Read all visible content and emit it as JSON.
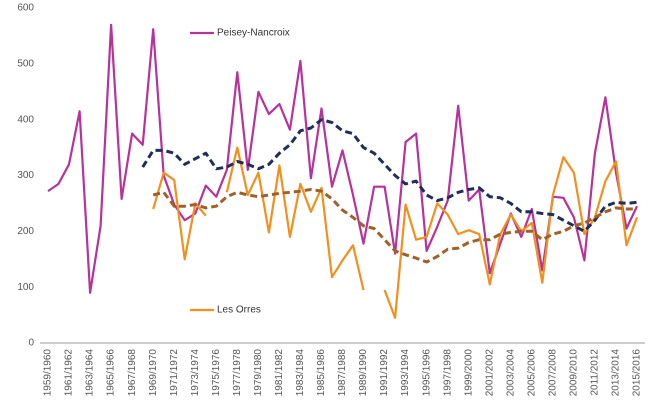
{
  "chart_data": {
    "type": "line",
    "categories": [
      "1959/1960",
      null,
      "1961/1962",
      null,
      "1963/1964",
      null,
      "1965/1966",
      null,
      "1967/1968",
      null,
      "1969/1970",
      null,
      "1971/1972",
      null,
      "1973/1974",
      null,
      "1975/1976",
      null,
      "1977/1978",
      null,
      "1979/1980",
      null,
      "1981/1982",
      null,
      "1983/1984",
      null,
      "1985/1986",
      null,
      "1987/1988",
      null,
      "1989/1990",
      null,
      "1991/1992",
      null,
      "1993/1994",
      null,
      "1995/1996",
      null,
      "1997/1998",
      null,
      "1999/2000",
      null,
      "2001/2002",
      null,
      "2003/2004",
      null,
      "2005/2006",
      null,
      "2007/2008",
      null,
      "2009/2010",
      null,
      "2011/2012",
      null,
      "2013/2014",
      null,
      "2015/2016"
    ],
    "series": [
      {
        "name": "Peisey-Nancroix",
        "color": "#b5339a",
        "values": [
          272,
          285,
          320,
          415,
          90,
          210,
          570,
          258,
          375,
          355,
          562,
          300,
          248,
          220,
          232,
          282,
          262,
          310,
          485,
          310,
          450,
          410,
          428,
          382,
          505,
          295,
          420,
          280,
          345,
          265,
          178,
          280,
          280,
          160,
          360,
          375,
          165,
          208,
          255,
          425,
          255,
          275,
          125,
          178,
          232,
          190,
          240,
          130,
          262,
          260,
          225,
          148,
          340,
          440,
          305,
          205,
          245
        ]
      },
      {
        "name": "Les Orres",
        "color": "#f0901e",
        "values": [
          null,
          null,
          null,
          null,
          null,
          null,
          null,
          null,
          null,
          null,
          240,
          305,
          292,
          150,
          250,
          228,
          null,
          270,
          350,
          265,
          305,
          198,
          318,
          190,
          285,
          235,
          278,
          118,
          148,
          175,
          95,
          null,
          95,
          45,
          248,
          185,
          190,
          250,
          230,
          195,
          202,
          195,
          105,
          195,
          230,
          200,
          215,
          108,
          265,
          333,
          305,
          195,
          225,
          290,
          325,
          175,
          225
        ]
      },
      {
        "color": "#1f2f5a",
        "dashed": true,
        "values": [
          null,
          null,
          null,
          null,
          null,
          null,
          null,
          null,
          null,
          315,
          345,
          345,
          340,
          320,
          330,
          340,
          312,
          315,
          325,
          320,
          312,
          320,
          340,
          355,
          380,
          385,
          400,
          395,
          380,
          375,
          350,
          340,
          320,
          300,
          285,
          290,
          265,
          255,
          260,
          270,
          275,
          278,
          262,
          260,
          250,
          235,
          235,
          232,
          230,
          220,
          210,
          200,
          220,
          245,
          252,
          250,
          252
        ]
      },
      {
        "color": "#a0602a",
        "dashed": true,
        "values": [
          null,
          null,
          null,
          null,
          null,
          null,
          null,
          null,
          null,
          null,
          265,
          270,
          245,
          245,
          248,
          242,
          245,
          262,
          270,
          265,
          262,
          265,
          268,
          270,
          272,
          275,
          272,
          258,
          238,
          225,
          210,
          205,
          185,
          165,
          158,
          152,
          145,
          155,
          168,
          170,
          180,
          185,
          185,
          195,
          198,
          200,
          200,
          185,
          195,
          200,
          210,
          215,
          225,
          235,
          242,
          240,
          240
        ]
      }
    ],
    "ylim": [
      0,
      600
    ],
    "yticks": [
      0,
      100,
      200,
      300,
      400,
      500,
      600
    ],
    "grid": false
  }
}
